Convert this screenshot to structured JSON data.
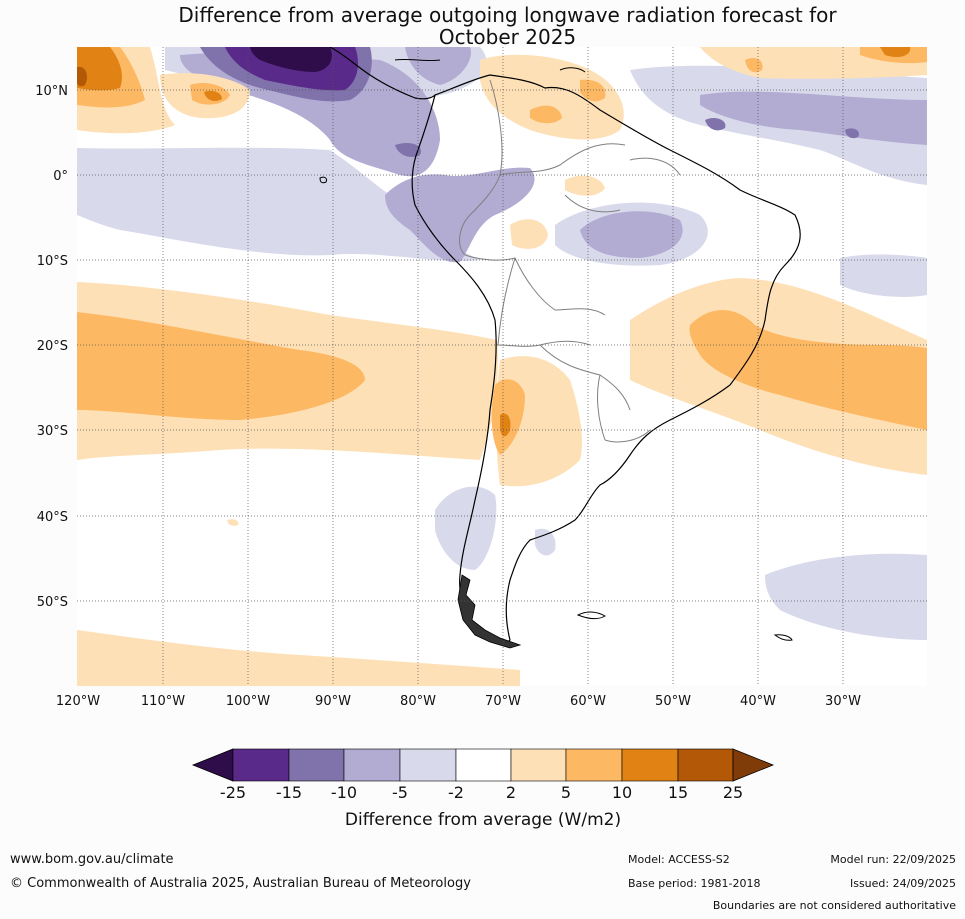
{
  "title": {
    "line1": "Difference from average outgoing longwave radiation forecast for",
    "line2": "October 2025"
  },
  "map": {
    "lat_labels": [
      "10°N",
      "0°",
      "10°S",
      "20°S",
      "30°S",
      "40°S",
      "50°S"
    ],
    "lon_labels": [
      "120°W",
      "110°W",
      "100°W",
      "90°W",
      "80°W",
      "70°W",
      "60°W",
      "50°W",
      "40°W",
      "30°W"
    ]
  },
  "colorbar": {
    "title": "Difference from average (W/m2)",
    "tick_labels": [
      "-25",
      "-15",
      "-10",
      "-5",
      "-2",
      "2",
      "5",
      "10",
      "15",
      "25"
    ],
    "colors": [
      "#2e0d4a",
      "#5a2a8a",
      "#8073ac",
      "#b2abd2",
      "#d8daeb",
      "#ffffff",
      "#fee0b6",
      "#fdb863",
      "#e08214",
      "#b35806",
      "#7f3b08"
    ]
  },
  "chart_data": {
    "type": "heatmap",
    "title": "Difference from average outgoing longwave radiation forecast for October 2025",
    "variable": "Difference from average outgoing longwave radiation (W/m2)",
    "region": "South America",
    "lon_range": [
      -120,
      -20
    ],
    "lat_range": [
      -60,
      15
    ],
    "levels": [
      -25,
      -15,
      -10,
      -5,
      -2,
      2,
      5,
      10,
      15,
      25
    ]
  },
  "footer": {
    "url": "www.bom.gov.au/climate",
    "copyright": "© Commonwealth of Australia 2025, Australian Bureau of Meteorology",
    "model": "Model: ACCESS-S2",
    "base_period": "Base period: 1981-2018",
    "model_run": "Model run: 22/09/2025",
    "issued": "Issued: 24/09/2025",
    "disclaimer": "Boundaries are not considered authoritative"
  }
}
